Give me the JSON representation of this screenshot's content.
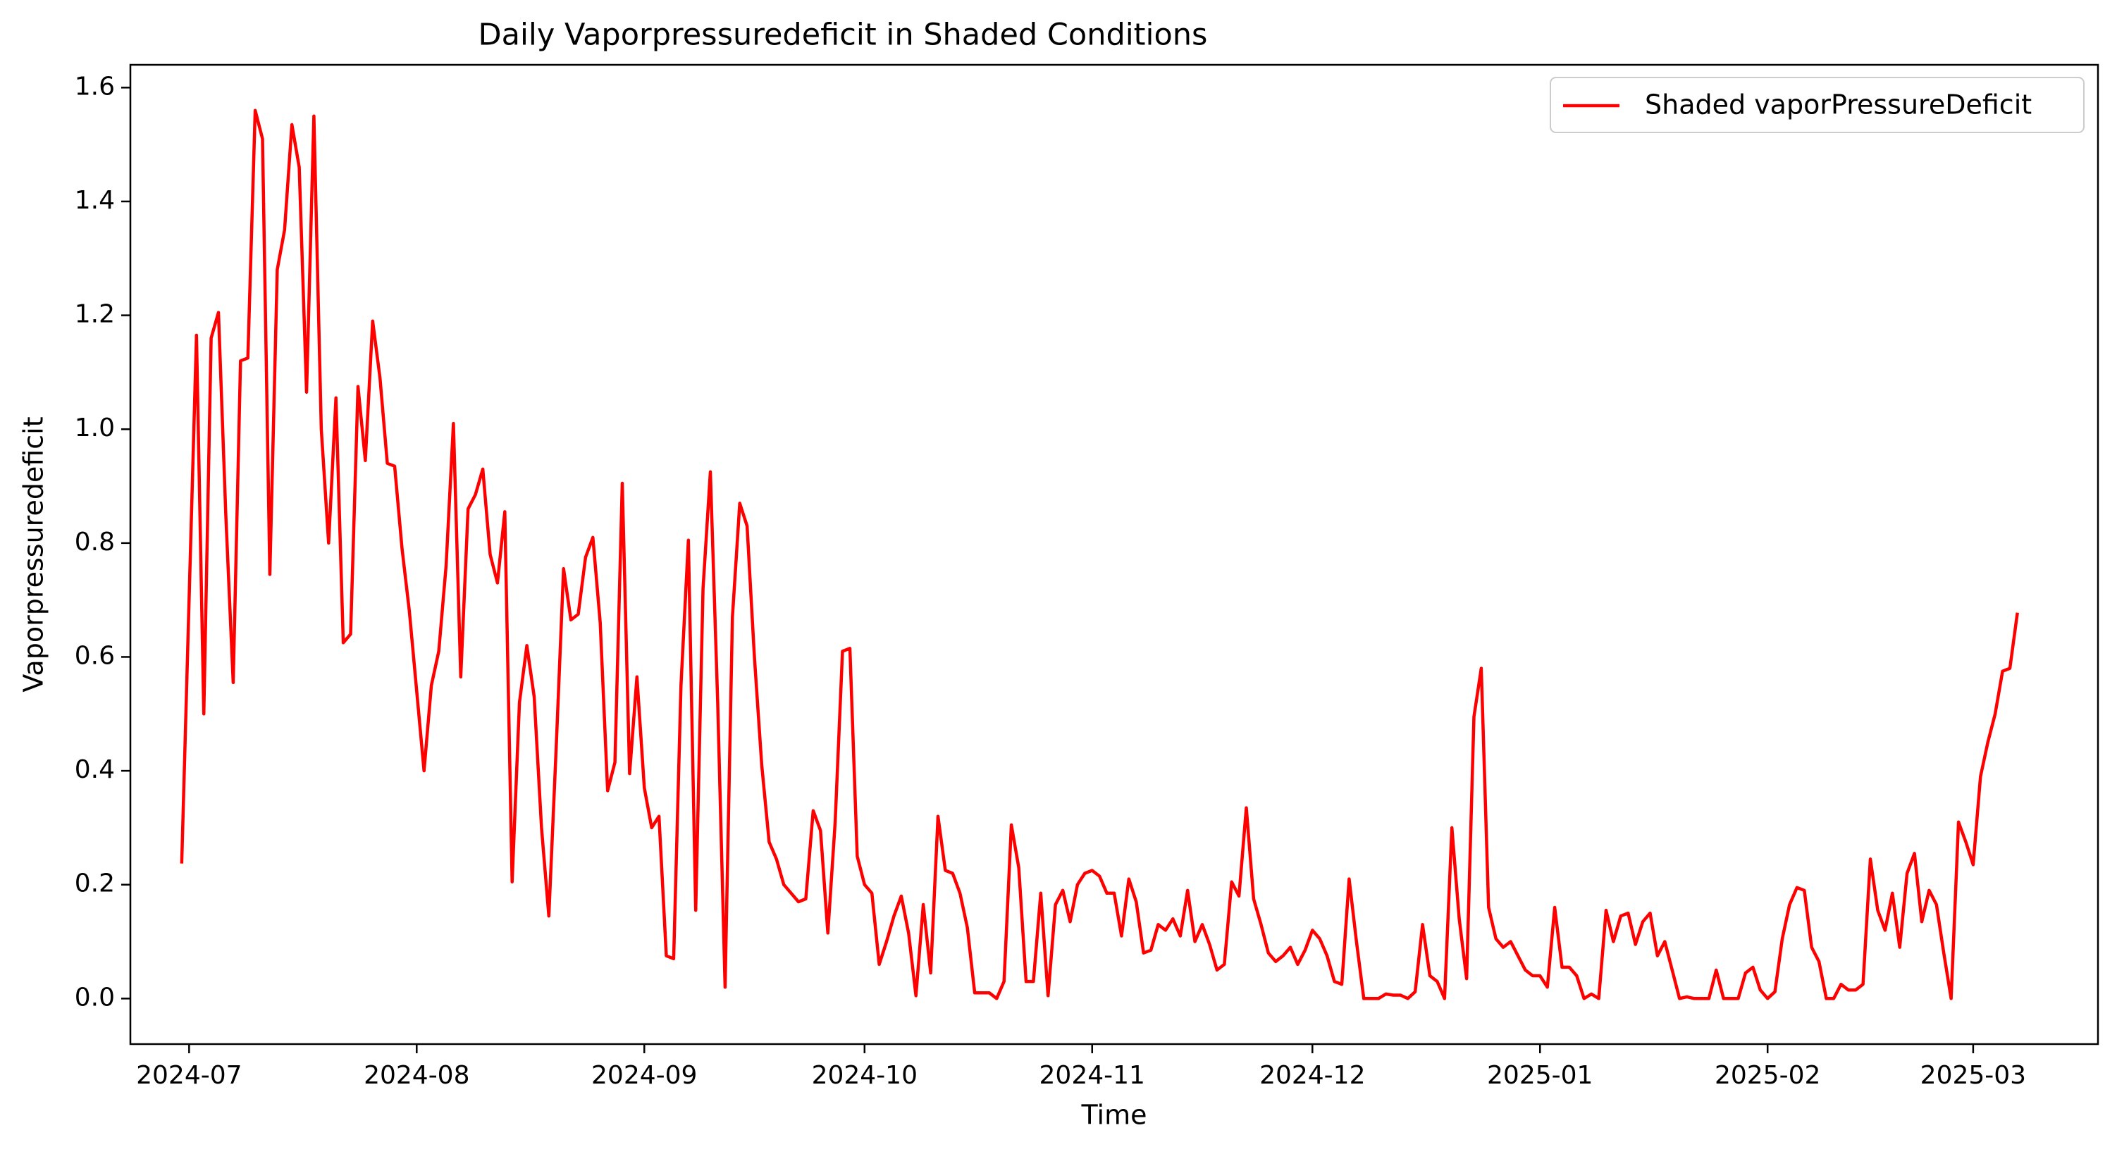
{
  "chart_data": {
    "type": "line",
    "title": "Daily Vaporpressuredeficit in Shaded Conditions",
    "xlabel": "Time",
    "ylabel": "Vaporpressuredeficit",
    "xlim": [
      "2024-06-23",
      "2025-03-18"
    ],
    "ylim": [
      -0.08,
      1.64
    ],
    "x_ticks": [
      "2024-07-01",
      "2024-08-01",
      "2024-09-01",
      "2024-10-01",
      "2024-11-01",
      "2024-12-01",
      "2025-01-01",
      "2025-02-01",
      "2025-03-01"
    ],
    "x_tick_labels": [
      "2024-07",
      "2024-08",
      "2024-09",
      "2024-10",
      "2024-11",
      "2024-12",
      "2025-01",
      "2025-02",
      "2025-03"
    ],
    "y_ticks": [
      0.0,
      0.2,
      0.4,
      0.6,
      0.8,
      1.0,
      1.2,
      1.4,
      1.6
    ],
    "y_tick_labels": [
      "0.0",
      "0.2",
      "0.4",
      "0.6",
      "0.8",
      "1.0",
      "1.2",
      "1.4",
      "1.6"
    ],
    "grid": false,
    "legend_position": "top-right",
    "series": [
      {
        "name": "Shaded vaporPressureDeficit",
        "color": "#ff0000",
        "start_date": "2024-06-30",
        "frequency": "daily",
        "values": [
          0.24,
          0.7,
          1.165,
          0.5,
          1.16,
          1.205,
          0.85,
          0.555,
          1.12,
          1.125,
          1.56,
          1.51,
          0.745,
          1.28,
          1.35,
          1.535,
          1.46,
          1.065,
          1.55,
          1.0,
          0.8,
          1.055,
          0.625,
          0.64,
          1.075,
          0.945,
          1.19,
          1.09,
          0.94,
          0.935,
          0.79,
          0.68,
          0.54,
          0.4,
          0.55,
          0.61,
          0.76,
          1.01,
          0.565,
          0.86,
          0.885,
          0.93,
          0.78,
          0.73,
          0.855,
          0.205,
          0.52,
          0.62,
          0.53,
          0.3,
          0.145,
          0.44,
          0.755,
          0.665,
          0.675,
          0.775,
          0.81,
          0.66,
          0.365,
          0.415,
          0.905,
          0.395,
          0.565,
          0.37,
          0.3,
          0.32,
          0.075,
          0.07,
          0.55,
          0.805,
          0.155,
          0.72,
          0.925,
          0.52,
          0.02,
          0.67,
          0.87,
          0.83,
          0.6,
          0.41,
          0.275,
          0.245,
          0.2,
          0.185,
          0.17,
          0.175,
          0.33,
          0.295,
          0.115,
          0.31,
          0.61,
          0.615,
          0.25,
          0.2,
          0.185,
          0.06,
          0.1,
          0.145,
          0.18,
          0.115,
          0.005,
          0.165,
          0.045,
          0.32,
          0.225,
          0.22,
          0.185,
          0.125,
          0.01,
          0.01,
          0.01,
          0.0,
          0.03,
          0.305,
          0.23,
          0.03,
          0.03,
          0.185,
          0.005,
          0.165,
          0.19,
          0.135,
          0.2,
          0.22,
          0.225,
          0.215,
          0.185,
          0.185,
          0.11,
          0.21,
          0.17,
          0.08,
          0.085,
          0.13,
          0.12,
          0.14,
          0.11,
          0.19,
          0.1,
          0.13,
          0.095,
          0.05,
          0.06,
          0.205,
          0.18,
          0.335,
          0.175,
          0.13,
          0.08,
          0.065,
          0.075,
          0.09,
          0.06,
          0.085,
          0.12,
          0.105,
          0.075,
          0.03,
          0.025,
          0.21,
          0.1,
          0.0,
          0.0,
          0.0,
          0.008,
          0.006,
          0.006,
          0.0,
          0.012,
          0.13,
          0.04,
          0.03,
          0.0,
          0.3,
          0.14,
          0.035,
          0.495,
          0.58,
          0.16,
          0.105,
          0.09,
          0.1,
          0.075,
          0.05,
          0.04,
          0.04,
          0.02,
          0.16,
          0.055,
          0.055,
          0.04,
          0.0,
          0.008,
          0.0,
          0.155,
          0.1,
          0.145,
          0.15,
          0.095,
          0.135,
          0.15,
          0.075,
          0.1,
          0.05,
          0.0,
          0.003,
          0.0,
          0.0,
          0.0,
          0.05,
          0.0,
          0.0,
          0.0,
          0.045,
          0.055,
          0.015,
          0.0,
          0.012,
          0.105,
          0.165,
          0.195,
          0.19,
          0.09,
          0.065,
          0.0,
          0.0,
          0.025,
          0.015,
          0.015,
          0.025,
          0.245,
          0.155,
          0.12,
          0.185,
          0.09,
          0.22,
          0.255,
          0.135,
          0.19,
          0.165,
          0.08,
          0.0,
          0.31,
          0.275,
          0.235,
          0.39,
          0.45,
          0.5,
          0.575,
          0.58,
          0.675
        ]
      }
    ]
  }
}
